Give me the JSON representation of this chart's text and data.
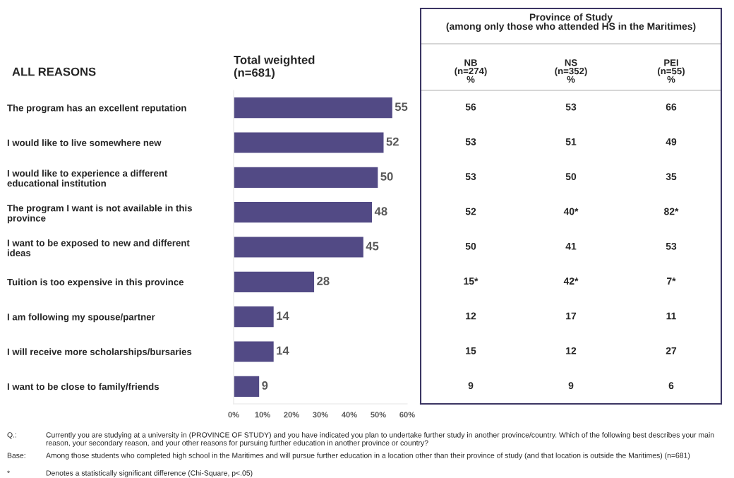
{
  "chart_data": [
    {
      "type": "bar",
      "orientation": "horizontal",
      "title": "Total weighted\n(n=681)",
      "ylabel": "ALL REASONS",
      "categories": [
        "The program has an excellent reputation",
        "I would like to live somewhere new",
        "I would like to experience a different\neducational institution",
        "The program I want is not available in this\nprovince",
        "I want to be exposed to new and different\nideas",
        "Tuition is too expensive in this province",
        "I am following my spouse/partner",
        "I will receive more scholarships/bursaries",
        "I want to be close to family/friends"
      ],
      "values": [
        55,
        52,
        50,
        48,
        45,
        28,
        14,
        14,
        9
      ],
      "color": "#524a85",
      "data_labels": true,
      "grid": false,
      "legend": false,
      "xlim": [
        0,
        60
      ],
      "xticks": [
        {
          "value": 0,
          "label": "0%"
        },
        {
          "value": 10,
          "label": "10%"
        },
        {
          "value": 20,
          "label": "20%"
        },
        {
          "value": 30,
          "label": "30%"
        },
        {
          "value": 40,
          "label": "40%"
        },
        {
          "value": 50,
          "label": "50%"
        },
        {
          "value": 60,
          "label": "60%"
        }
      ],
      "annotations": [
        "Q.:\tCurrently you are studying at a university in (PROVINCE OF STUDY) and you have indicated you plan to undertake further study in another province/country. Which of the following best describes your main reason, your secondary reason, and your other reasons for pursuing further education in another province or country?",
        "Base:\tAmong those students who completed high school in the Maritimes and will pursue further education in a location other than their province of study (and that location is outside the Maritimes) (n=681)",
        "*\tDenotes a statistically significant difference (Chi-Square, p<.05)"
      ]
    },
    {
      "type": "heatmap",
      "title": "Province of Study\n(among only those who attended HS in the Maritimes)",
      "categories": [
        "NB\n(n=274)\n%",
        "NS\n(n=352)\n%",
        "PEI\n(n=55)\n%"
      ],
      "y_categories": [
        null,
        null,
        null,
        null,
        null,
        null,
        null,
        null,
        null
      ],
      "cells": [
        [
          56,
          53,
          66
        ],
        [
          53,
          51,
          49
        ],
        [
          53,
          50,
          35
        ],
        [
          52,
          40,
          82
        ],
        [
          50,
          41,
          53
        ],
        [
          15,
          42,
          7
        ],
        [
          12,
          17,
          11
        ],
        [
          15,
          12,
          27
        ],
        [
          9,
          9,
          6
        ]
      ],
      "cell_labels": [
        [
          "56",
          "53",
          "66"
        ],
        [
          "53",
          "51",
          "49"
        ],
        [
          "53",
          "50",
          "35"
        ],
        [
          "52",
          "40*",
          "82*"
        ],
        [
          "50",
          "41",
          "53"
        ],
        [
          "15*",
          "42*",
          "7*"
        ],
        [
          "12",
          "17",
          "11"
        ],
        [
          "15",
          "12",
          "27"
        ],
        [
          "9",
          "9",
          "6"
        ]
      ]
    }
  ]
}
